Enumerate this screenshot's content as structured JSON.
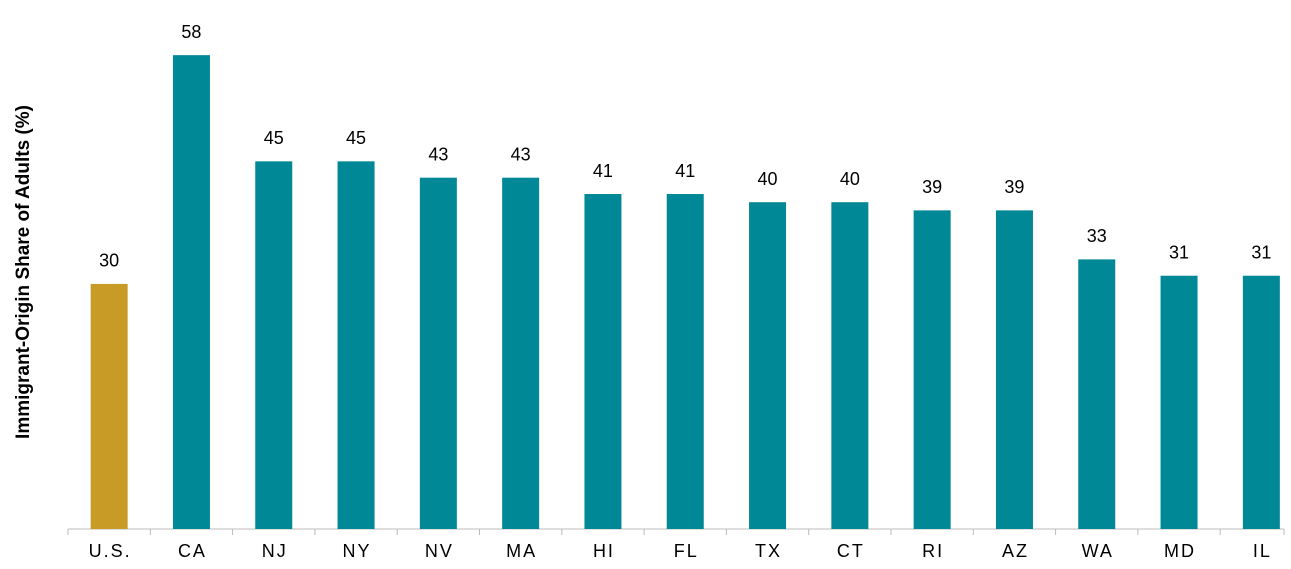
{
  "chart_data": {
    "type": "bar",
    "y_label": "Immigrant-Origin Share of Adults (%)",
    "categories": [
      "U.S.",
      "CA",
      "NJ",
      "NY",
      "NV",
      "MA",
      "HI",
      "FL",
      "TX",
      "CT",
      "RI",
      "AZ",
      "WA",
      "MD",
      "IL"
    ],
    "values": [
      30,
      58,
      45,
      45,
      43,
      43,
      41,
      41,
      40,
      40,
      39,
      39,
      33,
      31,
      31
    ],
    "colors": [
      "#c89b26",
      "#008896",
      "#008896",
      "#008896",
      "#008896",
      "#008896",
      "#008896",
      "#008896",
      "#008896",
      "#008896",
      "#008896",
      "#008896",
      "#008896",
      "#008896",
      "#008896"
    ]
  }
}
